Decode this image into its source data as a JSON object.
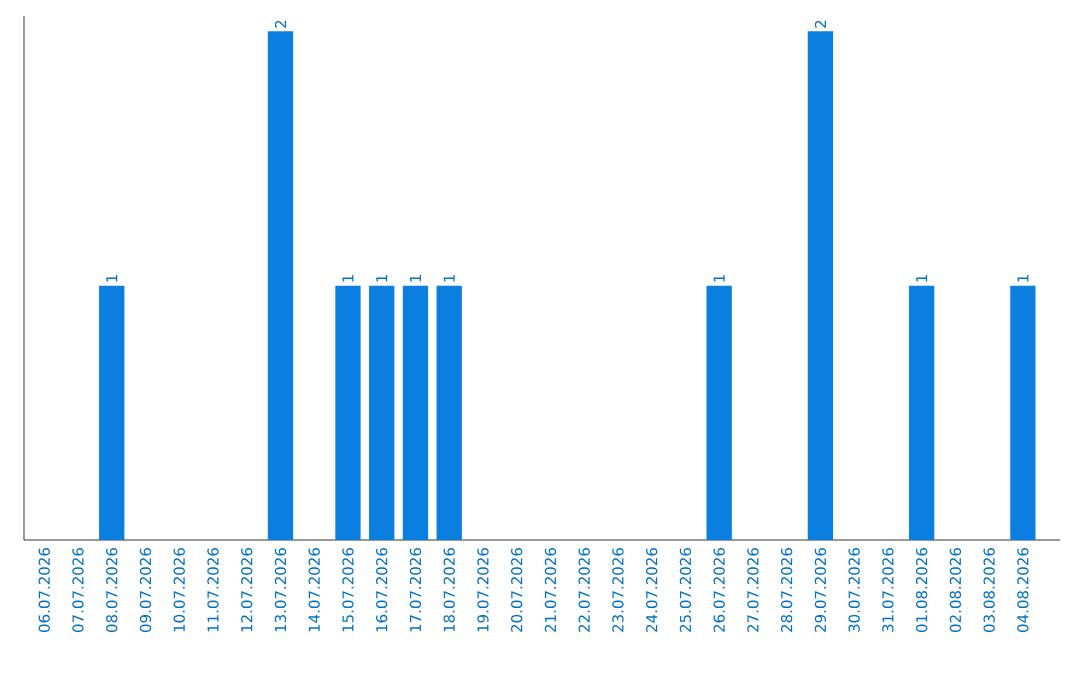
{
  "chart_data": {
    "type": "bar",
    "color": "#0a7fe0",
    "categories": [
      "06.07.2026",
      "07.07.2026",
      "08.07.2026",
      "09.07.2026",
      "10.07.2026",
      "11.07.2026",
      "12.07.2026",
      "13.07.2026",
      "14.07.2026",
      "15.07.2026",
      "16.07.2026",
      "17.07.2026",
      "18.07.2026",
      "19.07.2026",
      "20.07.2026",
      "21.07.2026",
      "22.07.2026",
      "23.07.2026",
      "24.07.2026",
      "25.07.2026",
      "26.07.2026",
      "27.07.2026",
      "28.07.2026",
      "29.07.2026",
      "30.07.2026",
      "31.07.2026",
      "01.08.2026",
      "02.08.2026",
      "03.08.2026",
      "04.08.2026"
    ],
    "values": [
      0,
      0,
      1,
      0,
      0,
      0,
      0,
      2,
      0,
      1,
      1,
      1,
      1,
      0,
      0,
      0,
      0,
      0,
      0,
      0,
      1,
      0,
      0,
      2,
      0,
      0,
      1,
      0,
      0,
      1
    ],
    "value_labels": [
      null,
      null,
      "1",
      null,
      null,
      null,
      null,
      "2",
      null,
      "1",
      "1",
      "1",
      "1",
      null,
      null,
      null,
      null,
      null,
      null,
      null,
      "1",
      null,
      null,
      "2",
      null,
      null,
      "1",
      null,
      null,
      "1"
    ],
    "tick_labels": "x"
  }
}
